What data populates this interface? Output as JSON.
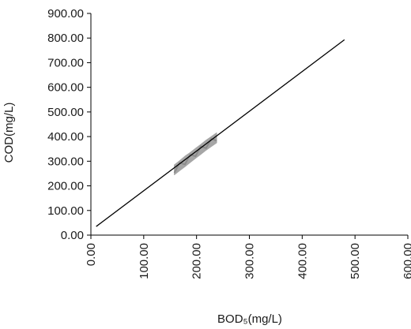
{
  "chart_data": {
    "type": "line",
    "xlabel": "BOD₅(mg/L)",
    "ylabel": "COD(mg/L)",
    "xlim": [
      0,
      600
    ],
    "ylim": [
      0,
      900
    ],
    "x_ticks": [
      "0.00",
      "100.00",
      "200.00",
      "300.00",
      "400.00",
      "500.00",
      "600.00"
    ],
    "y_ticks": [
      "0.00",
      "100.00",
      "200.00",
      "300.00",
      "400.00",
      "500.00",
      "600.00",
      "700.00",
      "800.00",
      "900.00"
    ],
    "grid": false,
    "series": [
      {
        "kind": "fit-line",
        "color": "#000000",
        "x": [
          10,
          480
        ],
        "y": [
          35,
          793
        ]
      },
      {
        "kind": "observed-band",
        "color": "#a6a6a6",
        "x": [
          158,
          168,
          178,
          188,
          198,
          208,
          218,
          228,
          238
        ],
        "y_low": [
          245,
          262,
          278,
          295,
          312,
          328,
          345,
          360,
          375
        ],
        "y_high": [
          285,
          302,
          320,
          335,
          352,
          368,
          385,
          400,
          415
        ]
      }
    ]
  }
}
